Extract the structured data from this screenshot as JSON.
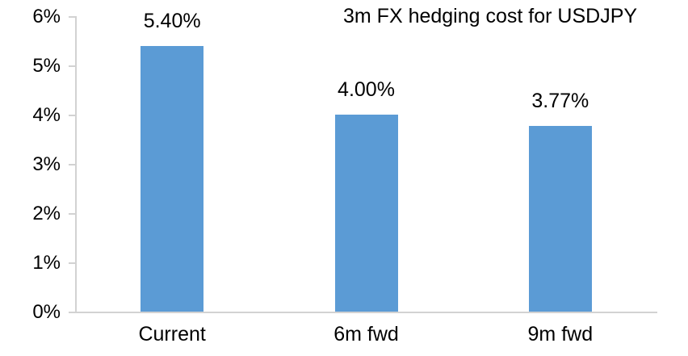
{
  "chart_data": {
    "type": "bar",
    "title": "3m FX hedging cost for USDJPY",
    "categories": [
      "Current",
      "6m fwd",
      "9m fwd"
    ],
    "values": [
      5.4,
      4.0,
      3.77
    ],
    "value_labels": [
      "5.40%",
      "4.00%",
      "3.77%"
    ],
    "y_tick_labels": [
      "0%",
      "1%",
      "2%",
      "3%",
      "4%",
      "5%",
      "6%"
    ],
    "ylim": [
      0,
      6
    ],
    "xlabel": "",
    "ylabel": "",
    "grid": "off",
    "legend": "none",
    "bar_color": "#5B9BD5",
    "axis_color": "#D2D2D2",
    "text_color": "#000000"
  }
}
